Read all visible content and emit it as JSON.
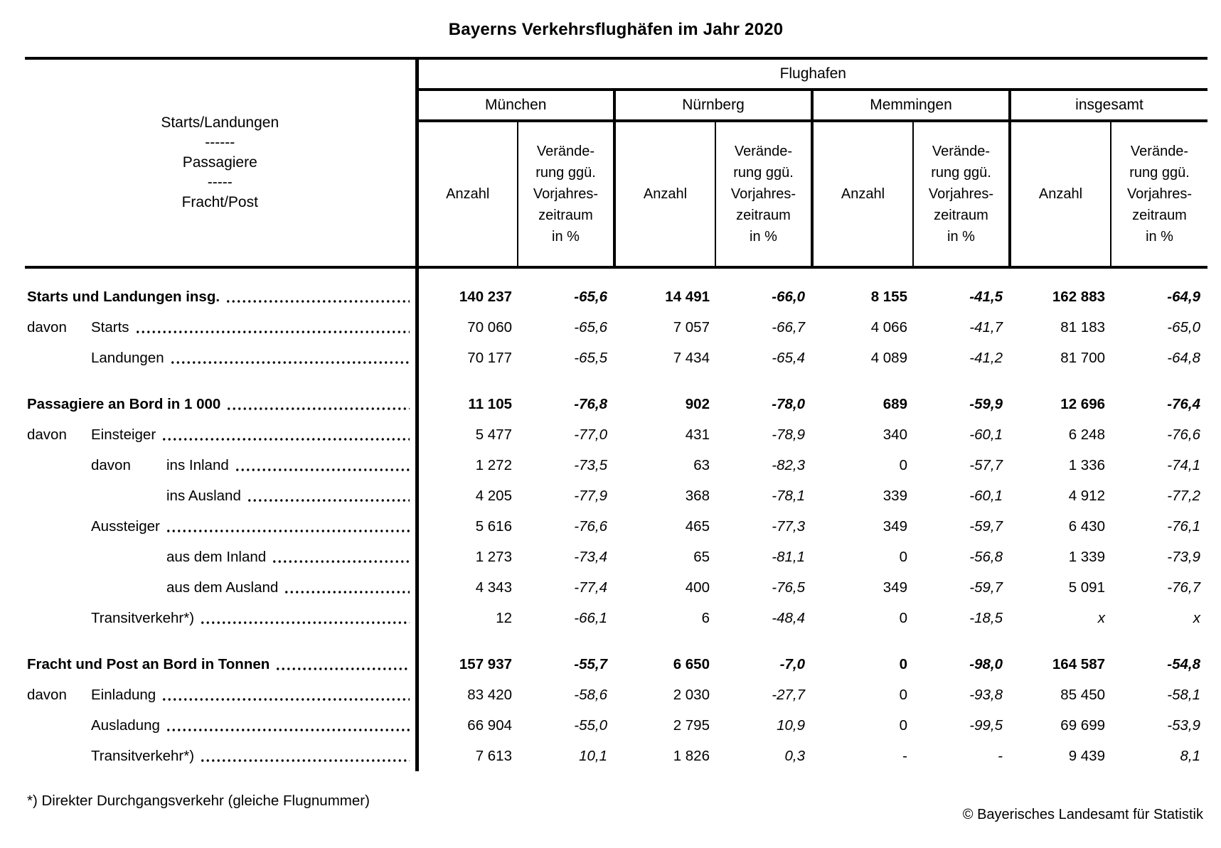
{
  "title": "Bayerns Verkehrsflughäfen im Jahr 2020",
  "table": {
    "stub_lines": [
      "Starts/Landungen",
      "------",
      "Passagiere",
      "-----",
      "Fracht/Post"
    ],
    "group_header": "Flughafen",
    "airports": [
      {
        "key": "muenchen",
        "label": "München"
      },
      {
        "key": "nuernberg",
        "label": "Nürnberg"
      },
      {
        "key": "memmingen",
        "label": "Memmingen"
      },
      {
        "key": "insgesamt",
        "label": "insgesamt"
      }
    ],
    "measure_count": "Anzahl",
    "measure_change_lines": [
      "Verände-",
      "rung ggü.",
      "Vorjahres-",
      "zeitraum",
      "in %"
    ],
    "rows": [
      {
        "label": "Starts und Landungen insg.",
        "prefix": "",
        "indent": 0,
        "bold": true,
        "group_start": false,
        "values": [
          "140 237",
          "-65,6",
          "14 491",
          "-66,0",
          "8 155",
          "-41,5",
          "162 883",
          "-64,9"
        ]
      },
      {
        "label": "Starts",
        "prefix": "davon",
        "indent": 1,
        "bold": false,
        "group_start": false,
        "values": [
          "70 060",
          "-65,6",
          "7 057",
          "-66,7",
          "4 066",
          "-41,7",
          "81 183",
          "-65,0"
        ]
      },
      {
        "label": "Landungen",
        "prefix": "",
        "indent": 1,
        "bold": false,
        "group_start": false,
        "values": [
          "70 177",
          "-65,5",
          "7 434",
          "-65,4",
          "4 089",
          "-41,2",
          "81 700",
          "-64,8"
        ]
      },
      {
        "label": "Passagiere an Bord in 1 000",
        "prefix": "",
        "indent": 0,
        "bold": true,
        "group_start": true,
        "values": [
          "11 105",
          "-76,8",
          "902",
          "-78,0",
          "689",
          "-59,9",
          "12 696",
          "-76,4"
        ]
      },
      {
        "label": "Einsteiger",
        "prefix": "davon",
        "indent": 1,
        "bold": false,
        "group_start": false,
        "values": [
          "5 477",
          "-77,0",
          "431",
          "-78,9",
          "340",
          "-60,1",
          "6 248",
          "-76,6"
        ]
      },
      {
        "label": "ins Inland",
        "prefix": "davon",
        "indent": 2,
        "bold": false,
        "group_start": false,
        "values": [
          "1 272",
          "-73,5",
          "63",
          "-82,3",
          "0",
          "-57,7",
          "1 336",
          "-74,1"
        ]
      },
      {
        "label": "ins Ausland",
        "prefix": "",
        "indent": 2,
        "bold": false,
        "group_start": false,
        "values": [
          "4 205",
          "-77,9",
          "368",
          "-78,1",
          "339",
          "-60,1",
          "4 912",
          "-77,2"
        ]
      },
      {
        "label": "Aussteiger",
        "prefix": "",
        "indent": 1,
        "bold": false,
        "group_start": false,
        "values": [
          "5 616",
          "-76,6",
          "465",
          "-77,3",
          "349",
          "-59,7",
          "6 430",
          "-76,1"
        ]
      },
      {
        "label": "aus dem Inland",
        "prefix": "",
        "indent": 2,
        "bold": false,
        "group_start": false,
        "values": [
          "1 273",
          "-73,4",
          "65",
          "-81,1",
          "0",
          "-56,8",
          "1 339",
          "-73,9"
        ]
      },
      {
        "label": "aus dem Ausland",
        "prefix": "",
        "indent": 2,
        "bold": false,
        "group_start": false,
        "values": [
          "4 343",
          "-77,4",
          "400",
          "-76,5",
          "349",
          "-59,7",
          "5 091",
          "-76,7"
        ]
      },
      {
        "label": "Transitverkehr*)",
        "prefix": "",
        "indent": 1,
        "bold": false,
        "group_start": false,
        "values": [
          "12",
          "-66,1",
          "6",
          "-48,4",
          "0",
          "-18,5",
          "x",
          "x"
        ]
      },
      {
        "label": "Fracht und Post an Bord in Tonnen",
        "prefix": "",
        "indent": 0,
        "bold": true,
        "group_start": true,
        "values": [
          "157 937",
          "-55,7",
          "6 650",
          "-7,0",
          "0",
          "-98,0",
          "164 587",
          "-54,8"
        ]
      },
      {
        "label": "Einladung",
        "prefix": "davon",
        "indent": 1,
        "bold": false,
        "group_start": false,
        "values": [
          "83 420",
          "-58,6",
          "2 030",
          "-27,7",
          "0",
          "-93,8",
          "85 450",
          "-58,1"
        ]
      },
      {
        "label": "Ausladung",
        "prefix": "",
        "indent": 1,
        "bold": false,
        "group_start": false,
        "values": [
          "66 904",
          "-55,0",
          "2 795",
          "10,9",
          "0",
          "-99,5",
          "69 699",
          "-53,9"
        ]
      },
      {
        "label": "Transitverkehr*)",
        "prefix": "",
        "indent": 1,
        "bold": false,
        "group_start": false,
        "values": [
          "7 613",
          "10,1",
          "1 826",
          "0,3",
          "-",
          "-",
          "9 439",
          "8,1"
        ]
      }
    ]
  },
  "footnote": "*) Direkter Durchgangsverkehr (gleiche Flugnummer)",
  "copyright": "© Bayerisches Landesamt für Statistik"
}
